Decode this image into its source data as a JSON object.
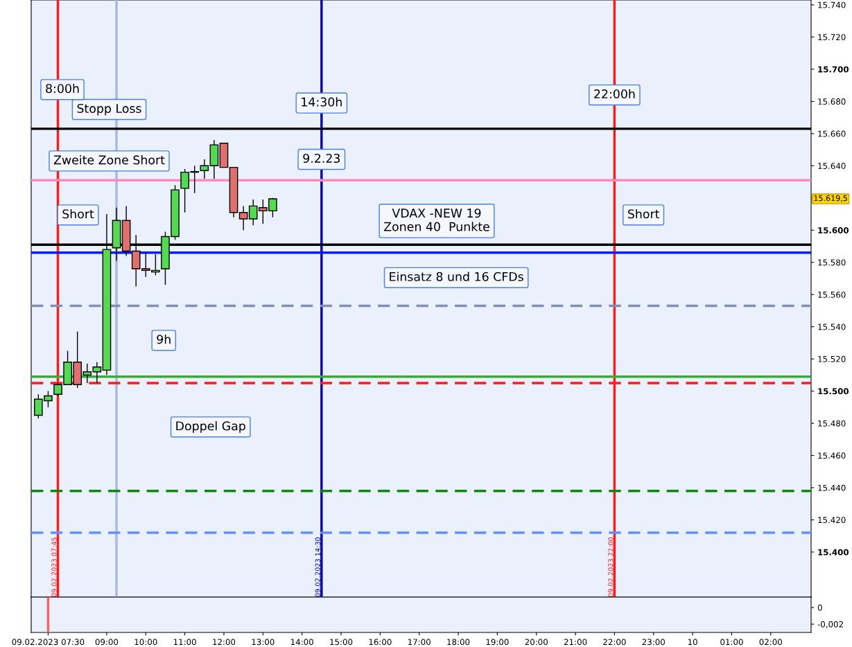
{
  "chart_data": [
    {
      "type": "candlestick",
      "x": [
        "2023-02-09T07:15",
        "2023-02-09T07:30",
        "2023-02-09T07:45",
        "2023-02-09T08:00",
        "2023-02-09T08:15",
        "2023-02-09T08:30",
        "2023-02-09T08:45",
        "2023-02-09T09:00",
        "2023-02-09T09:15",
        "2023-02-09T09:30",
        "2023-02-09T09:45",
        "2023-02-09T10:00",
        "2023-02-09T10:15",
        "2023-02-09T10:30",
        "2023-02-09T10:45",
        "2023-02-09T11:00",
        "2023-02-09T11:15",
        "2023-02-09T11:30",
        "2023-02-09T11:45",
        "2023-02-09T12:00",
        "2023-02-09T12:15",
        "2023-02-09T12:30",
        "2023-02-09T12:45",
        "2023-02-09T13:00",
        "2023-02-09T13:15"
      ],
      "ohlc": [
        [
          15485,
          15498,
          15483,
          15495
        ],
        [
          15494,
          15500,
          15490,
          15497
        ],
        [
          15498,
          15505,
          15497,
          15504
        ],
        [
          15504,
          15525,
          15504,
          15518
        ],
        [
          15518,
          15537,
          15502,
          15504
        ],
        [
          15510,
          15517,
          15505,
          15512
        ],
        [
          15512,
          15518,
          15505,
          15515
        ],
        [
          15513,
          15610,
          15510,
          15588
        ],
        [
          15589,
          15614,
          15581,
          15606
        ],
        [
          15606,
          15615,
          15584,
          15587
        ],
        [
          15587,
          15597,
          15565,
          15576
        ],
        [
          15576,
          15586,
          15571,
          15575
        ],
        [
          15574,
          15585,
          15572,
          15575
        ],
        [
          15576,
          15599,
          15566,
          15596
        ],
        [
          15596,
          15628,
          15594,
          15625
        ],
        [
          15626,
          15638,
          15611,
          15636
        ],
        [
          15636,
          15640,
          15623,
          15636
        ],
        [
          15637,
          15644,
          15632,
          15640
        ],
        [
          15640,
          15656,
          15632,
          15653
        ],
        [
          15654,
          15654,
          15639,
          15639
        ],
        [
          15639,
          15639,
          15608,
          15611
        ],
        [
          15611,
          15615,
          15600,
          15607
        ],
        [
          15607,
          15619,
          15603,
          15615
        ],
        [
          15614,
          15619,
          15604,
          15612
        ],
        [
          15612,
          15620,
          15608,
          15619.5
        ]
      ],
      "colors": [
        "#55d955",
        "#55d955",
        "#55d955",
        "#55d955",
        "#e07070",
        "#55d955",
        "#55d955",
        "#55d955",
        "#55d955",
        "#e07070",
        "#e07070",
        "#e07070",
        "#55d955",
        "#55d955",
        "#55d955",
        "#55d955",
        "#55d955",
        "#55d955",
        "#55d955",
        "#e07070",
        "#e07070",
        "#e07070",
        "#55d955",
        "#e07070",
        "#55d955"
      ],
      "xlim": [
        "2023-02-09T07:04",
        "2023-02-10T03:02"
      ],
      "ylim": [
        15372,
        15743
      ],
      "yticks": [
        {
          "value": 15400,
          "label": "15.400"
        },
        {
          "value": 15420,
          "label": "15.420"
        },
        {
          "value": 15440,
          "label": "15.440"
        },
        {
          "value": 15460,
          "label": "15.460"
        },
        {
          "value": 15480,
          "label": "15.480"
        },
        {
          "value": 15500,
          "label": "15.500"
        },
        {
          "value": 15520,
          "label": "15.520"
        },
        {
          "value": 15540,
          "label": "15.540"
        },
        {
          "value": 15560,
          "label": "15.560"
        },
        {
          "value": 15580,
          "label": "15.580"
        },
        {
          "value": 15600,
          "label": "15.600"
        },
        {
          "value": 15620,
          "label": null
        },
        {
          "value": 15640,
          "label": "15.640"
        },
        {
          "value": 15660,
          "label": "15.660"
        },
        {
          "value": 15680,
          "label": "15.680"
        },
        {
          "value": 15700,
          "label": "15.700"
        },
        {
          "value": 15720,
          "label": "15.720"
        },
        {
          "value": 15740,
          "label": "15.740"
        }
      ],
      "tick_labels": "y",
      "grid": false,
      "ref_lines": [
        {
          "axis": "x",
          "value": "2023-02-09T07:45",
          "label": "09.02.2023 07:45",
          "color": "#ff1a1a",
          "line_style": "solid"
        },
        {
          "axis": "x",
          "value": "2023-02-09T09:15",
          "color": "#a8b8e0",
          "line_style": "solid"
        },
        {
          "axis": "x",
          "value": "2023-02-09T14:30",
          "label": "09.02.2023 14:30",
          "color": "#0a0aa0",
          "line_style": "solid"
        },
        {
          "axis": "x",
          "value": "2023-02-09T22:00",
          "label": "09.02.2023 22:00",
          "color": "#ff1a1a",
          "line_style": "solid"
        },
        {
          "axis": "y",
          "value": 15663,
          "label": "Stopp Loss",
          "color": "#000000",
          "line_style": "solid"
        },
        {
          "axis": "y",
          "value": 15631,
          "label": "Zweite Zone Short",
          "color": "#ff88bb",
          "line_style": "solid"
        },
        {
          "axis": "y",
          "value": 15591,
          "color": "#000000",
          "line_style": "solid"
        },
        {
          "axis": "y",
          "value": 15586,
          "color": "#0a1aff",
          "line_style": "solid"
        },
        {
          "axis": "y",
          "value": 15553,
          "color": "#8090b0",
          "line_style": "dashed"
        },
        {
          "axis": "y",
          "value": 15509,
          "color": "#3aaa3a",
          "line_style": "solid"
        },
        {
          "axis": "y",
          "value": 15505,
          "color": "#ff1a1a",
          "line_style": "dashed"
        },
        {
          "axis": "y",
          "value": 15438,
          "color": "#0a8a0a",
          "line_style": "dashed"
        },
        {
          "axis": "y",
          "value": 15412,
          "color": "#6090ff",
          "line_style": "dashed"
        }
      ],
      "annotations": [
        {
          "text": "14:30h",
          "x": "2023-02-09T14:30",
          "y": 15679
        },
        {
          "text": "22:00h",
          "x": "2023-02-09T22:00",
          "y": 15684
        },
        {
          "text": "9.2.23",
          "x": "2023-02-09T14:30",
          "y": 15644
        },
        "8:00h",
        "Short",
        "VDAX -NEW 19\nZonen 40  Punkte",
        "Einsatz 8 und 16 CFDs",
        "9h",
        "Doppel Gap",
        "Short",
        "15.619,5"
      ]
    },
    {
      "type": "line",
      "xlim": [
        "2023-02-09T07:04",
        "2023-02-10T03:02"
      ],
      "xticks": [
        {
          "value": "2023-02-09T07:30",
          "label": "09.02.2023 07:30"
        },
        {
          "value": "2023-02-09T09:00",
          "label": "09:00"
        },
        {
          "value": "2023-02-09T10:00",
          "label": "10:00"
        },
        {
          "value": "2023-02-09T11:00",
          "label": "11:00"
        },
        {
          "value": "2023-02-09T12:00",
          "label": "12:00"
        },
        {
          "value": "2023-02-09T13:00",
          "label": "13:00"
        },
        {
          "value": "2023-02-09T14:00",
          "label": "14:00"
        },
        {
          "value": "2023-02-09T15:00",
          "label": "15:00"
        },
        {
          "value": "2023-02-09T16:00",
          "label": "16:00"
        },
        {
          "value": "2023-02-09T17:00",
          "label": "17:00"
        },
        {
          "value": "2023-02-09T18:00",
          "label": "18:00"
        },
        {
          "value": "2023-02-09T19:00",
          "label": "19:00"
        },
        {
          "value": "2023-02-09T20:00",
          "label": "20:00"
        },
        {
          "value": "2023-02-09T21:00",
          "label": "21:00"
        },
        {
          "value": "2023-02-09T22:00",
          "label": "22:00"
        },
        {
          "value": "2023-02-09T23:00",
          "label": "23:00"
        },
        {
          "value": "2023-02-10T00:00",
          "label": "10"
        },
        {
          "value": "2023-02-10T01:00",
          "label": "01:00"
        },
        {
          "value": "2023-02-10T02:00",
          "label": "02:00"
        }
      ],
      "ylim": [
        -0.003,
        0.00125
      ],
      "yticks": [
        {
          "value": 0,
          "label": "0"
        },
        {
          "value": -0.002,
          "label": "-0,002"
        }
      ],
      "grid": false,
      "ref_lines": [
        {
          "axis": "x",
          "value": "2023-02-09T07:30",
          "color": "#ff6060",
          "line_style": "solid"
        }
      ]
    }
  ]
}
